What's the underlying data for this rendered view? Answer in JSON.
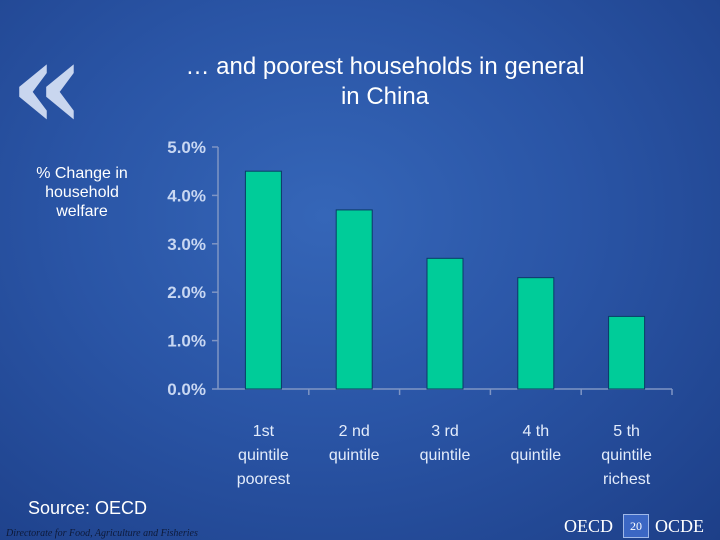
{
  "slide": {
    "quote_glyph": "«",
    "title_line1": "… and poorest households in general",
    "title_line2": "in China",
    "ylabel_line1": "% Change in",
    "ylabel_line2": "household",
    "ylabel_line3": "welfare",
    "source": "Source: OECD",
    "footer_left": "Directorate for Food, Agriculture and Fisheries",
    "logo_left": "OECD",
    "logo_right": "OCDE",
    "page_number": "20"
  },
  "colors": {
    "bar": "#00cc99",
    "axis": "#7f95c4",
    "tick_text": "#c8d7f2",
    "category_text": "#e3ecfb"
  },
  "chart_data": {
    "type": "bar",
    "title": "… and poorest households in general in China",
    "ylabel": "% Change in household welfare",
    "ylim": [
      0,
      5
    ],
    "yticks": [
      "0.0%",
      "1.0%",
      "2.0%",
      "3.0%",
      "4.0%",
      "5.0%"
    ],
    "categories": [
      [
        "1st",
        "quintile",
        "poorest"
      ],
      [
        "2 nd",
        "quintile"
      ],
      [
        "3 rd",
        "quintile"
      ],
      [
        "4 th",
        "quintile"
      ],
      [
        "5 th",
        "quintile",
        "richest"
      ]
    ],
    "values": [
      4.5,
      3.7,
      2.7,
      2.3,
      1.5
    ],
    "grid": false,
    "legend": "none"
  }
}
